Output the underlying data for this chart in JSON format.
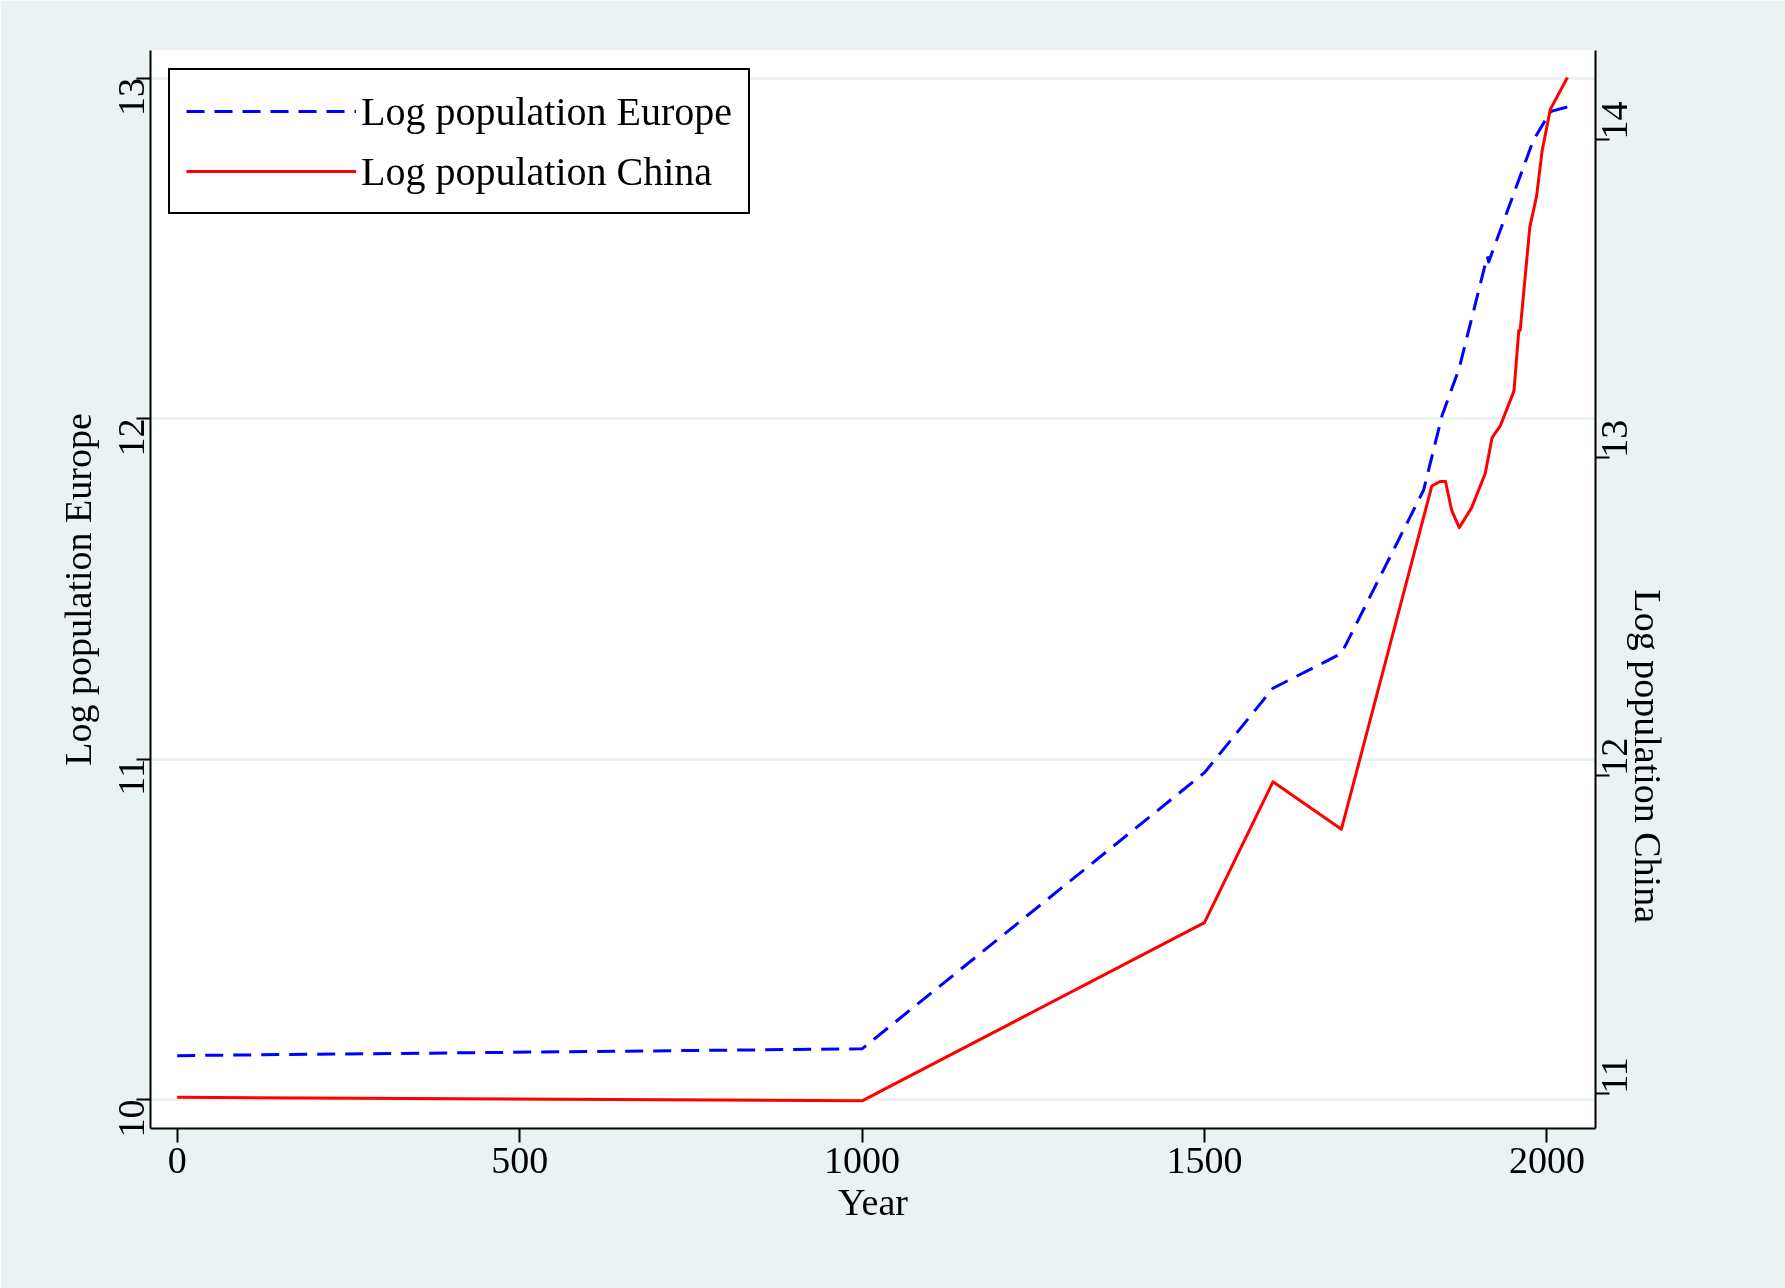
{
  "chart_data": {
    "type": "line",
    "xlabel": "Year",
    "ylabel": "Log population Europe",
    "y2label": "Log population China",
    "xlim": [
      -39,
      2071
    ],
    "xticks": [
      0,
      500,
      1000,
      1500,
      2000
    ],
    "ylim": [
      9.915,
      13.081
    ],
    "yticks": [
      10,
      11,
      12,
      13
    ],
    "y2lim": [
      10.891,
      14.28
    ],
    "y2ticks": [
      11,
      12,
      13,
      14
    ],
    "grid": "y",
    "legend": "top left",
    "series": [
      {
        "name": "Log population Europe",
        "color": "#0000ff",
        "line_style": "dashed",
        "x": [
          0,
          1000,
          1500,
          1600,
          1700,
          1820,
          1847,
          1872,
          1913,
          1915,
          1980,
          1995,
          2007,
          2030
        ],
        "values": [
          10.129,
          10.149,
          10.96,
          11.208,
          11.31,
          11.79,
          12.009,
          12.148,
          12.477,
          12.46,
          12.816,
          12.867,
          12.903,
          12.915
        ]
      },
      {
        "name": "Log population China",
        "color": "#ff0000",
        "line_style": "solid",
        "axis": "y2",
        "x": [
          0,
          1000,
          1500,
          1600,
          1700,
          1832,
          1844,
          1852,
          1861,
          1872,
          1890,
          1910,
          1920,
          1932,
          1952,
          1959,
          1961,
          1975,
          1985,
          1993,
          2005,
          2030
        ],
        "values": [
          10.989,
          10.978,
          11.538,
          11.981,
          11.832,
          12.911,
          12.925,
          12.925,
          12.834,
          12.78,
          12.842,
          12.95,
          13.063,
          13.1,
          13.21,
          13.4,
          13.4,
          13.724,
          13.822,
          13.964,
          14.095,
          14.195
        ]
      }
    ]
  }
}
